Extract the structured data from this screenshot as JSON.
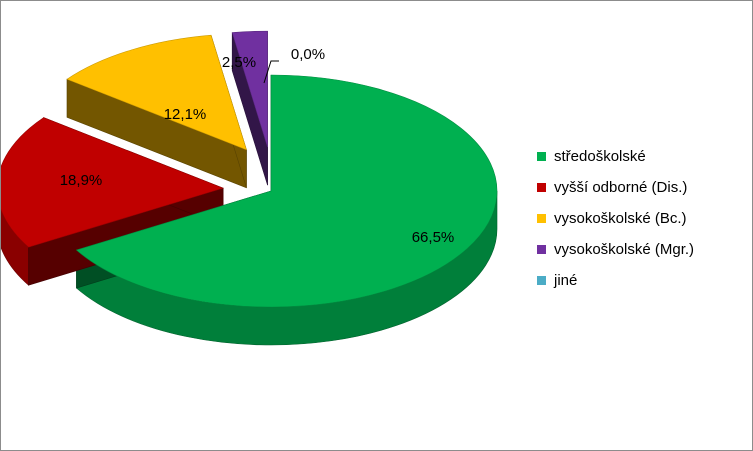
{
  "chart_data": {
    "type": "pie",
    "title": "",
    "categories": [
      "středoškolské",
      "vyšší odborné (Dis.)",
      "vysokoškolské (Bc.)",
      "vysokoškolské (Mgr.)",
      "jiné"
    ],
    "values": [
      66.5,
      18.9,
      12.1,
      2.5,
      0.0
    ],
    "labels": [
      "66,5%",
      "18,9%",
      "12,1%",
      "2,5%",
      "0,0%"
    ],
    "colors": [
      "#00B050",
      "#C00000",
      "#FFC000",
      "#7030A0",
      "#4BACC6"
    ],
    "exploded": true,
    "three_d": true,
    "legend_position": "right"
  }
}
